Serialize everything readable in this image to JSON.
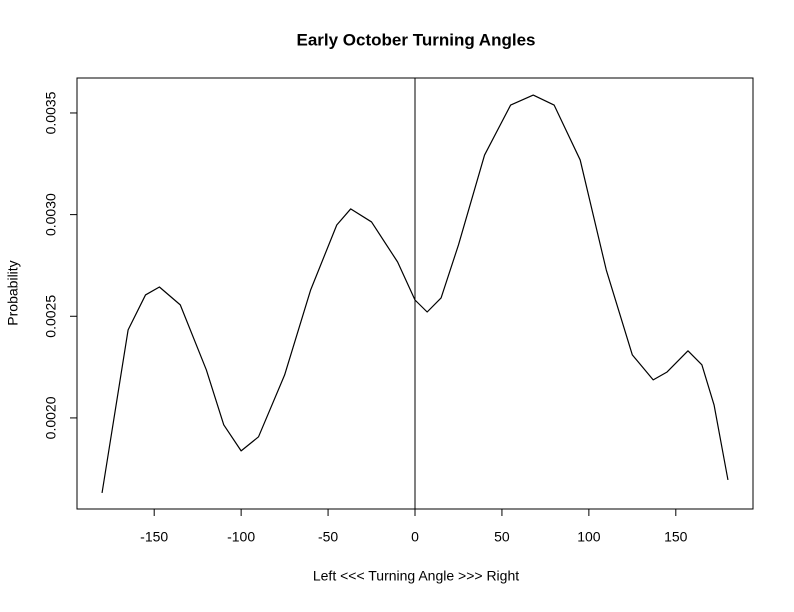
{
  "chart_data": {
    "type": "line",
    "title": "Early October Turning Angles",
    "x_label": "Left <<< Turning Angle >>> Right",
    "y_label": "Probability",
    "x": [
      -180,
      -165,
      -155,
      -147,
      -135,
      -120,
      -110,
      -100,
      -90,
      -75,
      -60,
      -45,
      -37,
      -25,
      -10,
      0,
      7,
      15,
      25,
      40,
      55,
      68,
      80,
      95,
      110,
      125,
      137,
      145,
      157,
      165,
      172,
      180
    ],
    "series": [
      {
        "color": "#000000",
        "values": [
          0.001631,
          0.002433,
          0.002605,
          0.002644,
          0.002556,
          0.002236,
          0.001966,
          0.001838,
          0.001907,
          0.002211,
          0.00263,
          0.002949,
          0.003028,
          0.002964,
          0.002767,
          0.00258,
          0.002521,
          0.00259,
          0.002851,
          0.003293,
          0.003539,
          0.003588,
          0.003539,
          0.003269,
          0.002728,
          0.00231,
          0.002187,
          0.002226,
          0.00233,
          0.002261,
          0.002064,
          0.001695
        ]
      }
    ],
    "vline": 0,
    "xlim": [
      -194.4,
      194.4
    ],
    "ylim": [
      0.001552,
      0.003672
    ],
    "xticks": [
      -150,
      -100,
      -50,
      0,
      50,
      100,
      150
    ],
    "yticks": [
      {
        "value": 0.002,
        "label": "0.0020"
      },
      0.0025,
      {
        "value": 0.003,
        "label": "0.0030"
      },
      0.0035
    ]
  }
}
